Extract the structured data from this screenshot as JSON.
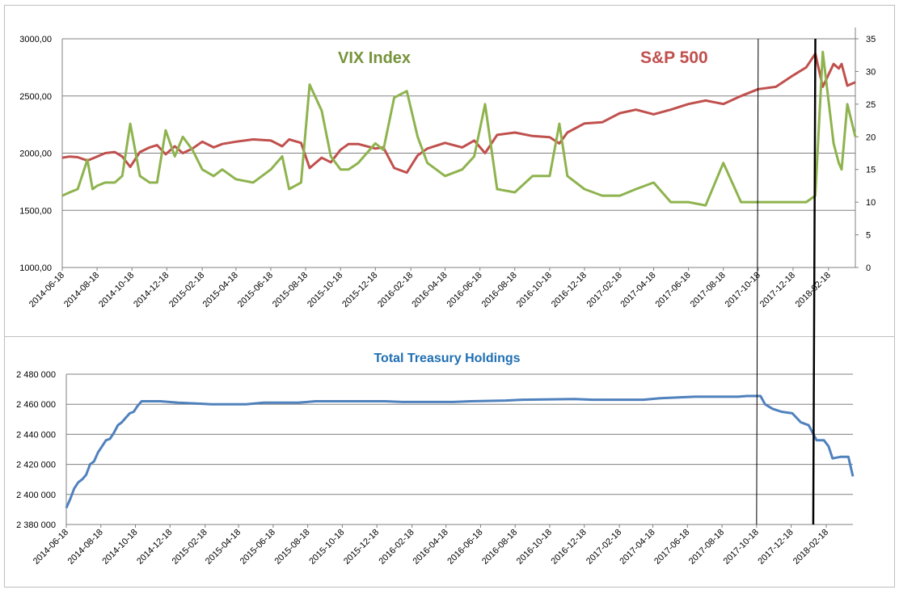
{
  "chart_data": [
    {
      "type": "line",
      "title": "",
      "y_left": {
        "ticks": [
          "1000,00",
          "1500,00",
          "2000,00",
          "2500,00",
          "3000,00"
        ],
        "range": [
          1000,
          3000
        ]
      },
      "y_right": {
        "ticks": [
          "0",
          "5",
          "10",
          "15",
          "20",
          "25",
          "30",
          "35"
        ],
        "range": [
          0,
          35
        ]
      },
      "x_tick_labels": [
        "2014-06-18",
        "2014-08-18",
        "2014-10-18",
        "2014-12-18",
        "2015-02-18",
        "2015-04-18",
        "2015-06-18",
        "2015-08-18",
        "2015-10-18",
        "2015-12-18",
        "2016-02-18",
        "2016-04-18",
        "2016-06-18",
        "2016-08-18",
        "2016-10-18",
        "2016-12-18",
        "2017-02-18",
        "2017-04-18",
        "2017-06-18",
        "2017-08-18",
        "2017-10-18",
        "2017-12-18",
        "2018-02-18"
      ],
      "x_range": [
        "2014-06-18",
        "2018-04-06"
      ],
      "grid": "horizontal",
      "series": [
        {
          "name": "S&P 500",
          "axis": "left",
          "color": "#c0504d",
          "points": [
            [
              "2014-06-18",
              1960
            ],
            [
              "2014-07-01",
              1970
            ],
            [
              "2014-07-15",
              1965
            ],
            [
              "2014-08-01",
              1935
            ],
            [
              "2014-08-18",
              1970
            ],
            [
              "2014-09-01",
              2000
            ],
            [
              "2014-09-18",
              2010
            ],
            [
              "2014-10-01",
              1970
            ],
            [
              "2014-10-15",
              1880
            ],
            [
              "2014-11-01",
              2010
            ],
            [
              "2014-11-18",
              2050
            ],
            [
              "2014-12-01",
              2070
            ],
            [
              "2014-12-16",
              1990
            ],
            [
              "2015-01-01",
              2060
            ],
            [
              "2015-01-15",
              2000
            ],
            [
              "2015-02-01",
              2040
            ],
            [
              "2015-02-18",
              2100
            ],
            [
              "2015-03-10",
              2050
            ],
            [
              "2015-03-25",
              2080
            ],
            [
              "2015-04-18",
              2100
            ],
            [
              "2015-05-18",
              2120
            ],
            [
              "2015-06-18",
              2110
            ],
            [
              "2015-07-08",
              2060
            ],
            [
              "2015-07-20",
              2120
            ],
            [
              "2015-08-10",
              2090
            ],
            [
              "2015-08-25",
              1870
            ],
            [
              "2015-09-15",
              1960
            ],
            [
              "2015-10-01",
              1920
            ],
            [
              "2015-10-18",
              2030
            ],
            [
              "2015-11-01",
              2080
            ],
            [
              "2015-11-18",
              2080
            ],
            [
              "2015-12-18",
              2040
            ],
            [
              "2016-01-01",
              2050
            ],
            [
              "2016-01-20",
              1870
            ],
            [
              "2016-02-11",
              1830
            ],
            [
              "2016-03-01",
              1980
            ],
            [
              "2016-03-18",
              2040
            ],
            [
              "2016-04-18",
              2090
            ],
            [
              "2016-05-18",
              2050
            ],
            [
              "2016-06-08",
              2110
            ],
            [
              "2016-06-27",
              2000
            ],
            [
              "2016-07-18",
              2160
            ],
            [
              "2016-08-18",
              2180
            ],
            [
              "2016-09-18",
              2150
            ],
            [
              "2016-10-18",
              2140
            ],
            [
              "2016-11-04",
              2085
            ],
            [
              "2016-11-18",
              2180
            ],
            [
              "2016-12-18",
              2260
            ],
            [
              "2017-01-18",
              2270
            ],
            [
              "2017-02-18",
              2350
            ],
            [
              "2017-03-18",
              2380
            ],
            [
              "2017-04-18",
              2340
            ],
            [
              "2017-05-18",
              2380
            ],
            [
              "2017-06-18",
              2430
            ],
            [
              "2017-07-18",
              2460
            ],
            [
              "2017-08-18",
              2430
            ],
            [
              "2017-09-18",
              2500
            ],
            [
              "2017-10-18",
              2560
            ],
            [
              "2017-11-18",
              2580
            ],
            [
              "2017-12-18",
              2680
            ],
            [
              "2018-01-10",
              2750
            ],
            [
              "2018-01-26",
              2870
            ],
            [
              "2018-02-08",
              2580
            ],
            [
              "2018-02-27",
              2780
            ],
            [
              "2018-03-08",
              2740
            ],
            [
              "2018-03-13",
              2780
            ],
            [
              "2018-03-23",
              2590
            ],
            [
              "2018-04-06",
              2620
            ]
          ]
        },
        {
          "name": "VIX Index",
          "axis": "right",
          "color": "#8eb34e",
          "points": [
            [
              "2014-06-18",
              11
            ],
            [
              "2014-07-01",
              11.5
            ],
            [
              "2014-07-15",
              12
            ],
            [
              "2014-08-01",
              16.5
            ],
            [
              "2014-08-10",
              12
            ],
            [
              "2014-08-18",
              12.5
            ],
            [
              "2014-09-01",
              13
            ],
            [
              "2014-09-18",
              13
            ],
            [
              "2014-10-01",
              14
            ],
            [
              "2014-10-15",
              22
            ],
            [
              "2014-11-01",
              14
            ],
            [
              "2014-11-18",
              13
            ],
            [
              "2014-12-01",
              13
            ],
            [
              "2014-12-16",
              21
            ],
            [
              "2015-01-01",
              17
            ],
            [
              "2015-01-15",
              20
            ],
            [
              "2015-02-01",
              18
            ],
            [
              "2015-02-18",
              15
            ],
            [
              "2015-03-10",
              14
            ],
            [
              "2015-03-25",
              15
            ],
            [
              "2015-04-18",
              13.5
            ],
            [
              "2015-05-18",
              13
            ],
            [
              "2015-06-18",
              15
            ],
            [
              "2015-07-08",
              17
            ],
            [
              "2015-07-20",
              12
            ],
            [
              "2015-08-10",
              13
            ],
            [
              "2015-08-25",
              28
            ],
            [
              "2015-09-15",
              24
            ],
            [
              "2015-10-01",
              17
            ],
            [
              "2015-10-18",
              15
            ],
            [
              "2015-11-01",
              15
            ],
            [
              "2015-11-18",
              16
            ],
            [
              "2015-12-18",
              19
            ],
            [
              "2016-01-01",
              18
            ],
            [
              "2016-01-20",
              26
            ],
            [
              "2016-02-11",
              27
            ],
            [
              "2016-03-01",
              20
            ],
            [
              "2016-03-18",
              16
            ],
            [
              "2016-04-18",
              14
            ],
            [
              "2016-05-18",
              15
            ],
            [
              "2016-06-08",
              17
            ],
            [
              "2016-06-27",
              25
            ],
            [
              "2016-07-18",
              12
            ],
            [
              "2016-08-18",
              11.5
            ],
            [
              "2016-09-18",
              14
            ],
            [
              "2016-10-18",
              14
            ],
            [
              "2016-11-04",
              22
            ],
            [
              "2016-11-18",
              14
            ],
            [
              "2016-12-18",
              12
            ],
            [
              "2017-01-18",
              11
            ],
            [
              "2017-02-18",
              11
            ],
            [
              "2017-03-18",
              12
            ],
            [
              "2017-04-18",
              13
            ],
            [
              "2017-05-18",
              10
            ],
            [
              "2017-06-18",
              10
            ],
            [
              "2017-07-18",
              9.5
            ],
            [
              "2017-08-18",
              16
            ],
            [
              "2017-09-18",
              10
            ],
            [
              "2017-10-18",
              10
            ],
            [
              "2017-11-18",
              10
            ],
            [
              "2017-12-18",
              10
            ],
            [
              "2018-01-10",
              10
            ],
            [
              "2018-01-26",
              11
            ],
            [
              "2018-02-08",
              33
            ],
            [
              "2018-02-27",
              19
            ],
            [
              "2018-03-08",
              16
            ],
            [
              "2018-03-13",
              15
            ],
            [
              "2018-03-23",
              25
            ],
            [
              "2018-04-06",
              20
            ]
          ]
        }
      ],
      "annotations": [
        "VIX Index",
        "S&P 500"
      ]
    },
    {
      "type": "line",
      "title": "Total Treasury Holdings",
      "y_left": {
        "ticks": [
          "2 380 000",
          "2 400 000",
          "2 420 000",
          "2 440 000",
          "2 460 000",
          "2 480 000"
        ],
        "range": [
          2380000,
          2480000
        ]
      },
      "x_tick_labels": [
        "2014-06-18",
        "2014-08-18",
        "2014-10-18",
        "2014-12-18",
        "2015-02-18",
        "2015-04-18",
        "2015-06-18",
        "2015-08-18",
        "2015-10-18",
        "2015-12-18",
        "2016-02-18",
        "2016-04-18",
        "2016-06-18",
        "2016-08-18",
        "2016-10-18",
        "2016-12-18",
        "2017-02-18",
        "2017-04-18",
        "2017-06-18",
        "2017-08-18",
        "2017-10-18",
        "2017-12-18",
        "2018-02-18"
      ],
      "x_range": [
        "2014-06-18",
        "2018-04-06"
      ],
      "grid": "horizontal",
      "series": [
        {
          "name": "Total Treasury Holdings",
          "color": "#4f81bd",
          "points": [
            [
              "2014-06-18",
              2391000
            ],
            [
              "2014-06-25",
              2397000
            ],
            [
              "2014-07-02",
              2404000
            ],
            [
              "2014-07-09",
              2408000
            ],
            [
              "2014-07-16",
              2410000
            ],
            [
              "2014-07-23",
              2413000
            ],
            [
              "2014-07-30",
              2420000
            ],
            [
              "2014-08-06",
              2422000
            ],
            [
              "2014-08-13",
              2428000
            ],
            [
              "2014-08-20",
              2432000
            ],
            [
              "2014-08-27",
              2436000
            ],
            [
              "2014-09-03",
              2437000
            ],
            [
              "2014-09-10",
              2441000
            ],
            [
              "2014-09-17",
              2446000
            ],
            [
              "2014-09-24",
              2448000
            ],
            [
              "2014-10-01",
              2451000
            ],
            [
              "2014-10-08",
              2454000
            ],
            [
              "2014-10-15",
              2455000
            ],
            [
              "2014-10-22",
              2459000
            ],
            [
              "2014-10-29",
              2462000
            ],
            [
              "2014-12-01",
              2462000
            ],
            [
              "2015-01-01",
              2461000
            ],
            [
              "2015-02-01",
              2460500
            ],
            [
              "2015-03-01",
              2460000
            ],
            [
              "2015-05-01",
              2460000
            ],
            [
              "2015-06-01",
              2461000
            ],
            [
              "2015-08-01",
              2461000
            ],
            [
              "2015-09-01",
              2462000
            ],
            [
              "2016-01-01",
              2462000
            ],
            [
              "2016-02-01",
              2461500
            ],
            [
              "2016-05-01",
              2461500
            ],
            [
              "2016-06-01",
              2462000
            ],
            [
              "2016-08-01",
              2462500
            ],
            [
              "2016-09-01",
              2463000
            ],
            [
              "2016-12-01",
              2463500
            ],
            [
              "2017-01-01",
              2463000
            ],
            [
              "2017-04-01",
              2463000
            ],
            [
              "2017-05-01",
              2464000
            ],
            [
              "2017-07-01",
              2465000
            ],
            [
              "2017-09-15",
              2465000
            ],
            [
              "2017-10-01",
              2465500
            ],
            [
              "2017-10-25",
              2465500
            ],
            [
              "2017-11-02",
              2460000
            ],
            [
              "2017-11-15",
              2457000
            ],
            [
              "2017-12-01",
              2455000
            ],
            [
              "2017-12-20",
              2454000
            ],
            [
              "2018-01-04",
              2448000
            ],
            [
              "2018-01-18",
              2446000
            ],
            [
              "2018-02-01",
              2436000
            ],
            [
              "2018-02-14",
              2436000
            ],
            [
              "2018-02-22",
              2432000
            ],
            [
              "2018-03-01",
              2424000
            ],
            [
              "2018-03-15",
              2425000
            ],
            [
              "2018-03-29",
              2425000
            ],
            [
              "2018-04-06",
              2412000
            ]
          ]
        }
      ]
    }
  ],
  "markers": [
    "2017-10-18",
    "2018-01-26"
  ]
}
